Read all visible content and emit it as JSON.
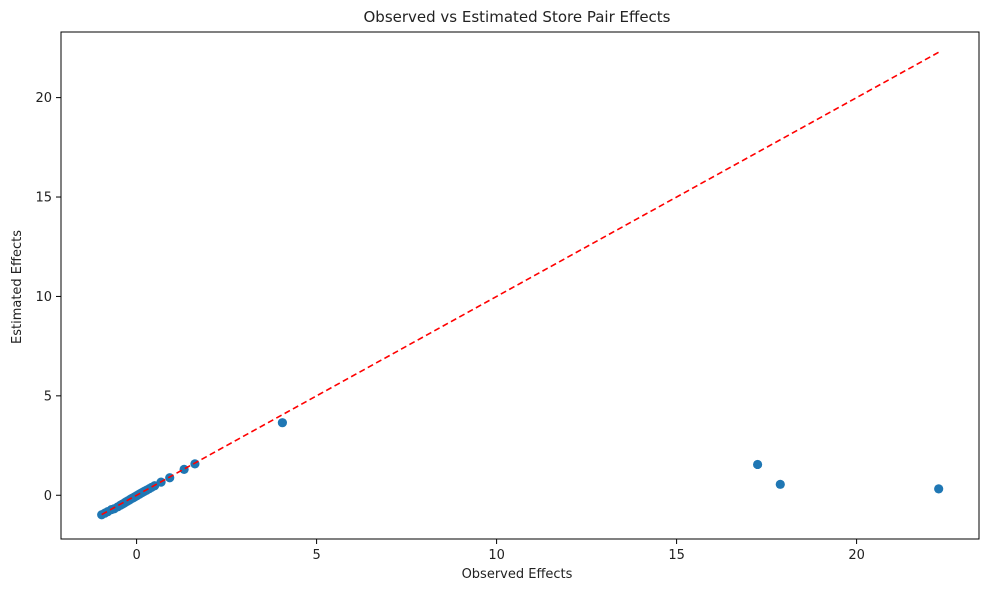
{
  "chart_data": {
    "type": "scatter",
    "title": "Observed vs Estimated Store Pair Effects",
    "xlabel": "Observed Effects",
    "ylabel": "Estimated Effects",
    "xlim": [
      -2.1,
      23.4
    ],
    "ylim": [
      -2.2,
      23.3
    ],
    "xticks": [
      0,
      5,
      10,
      15,
      20
    ],
    "yticks": [
      0,
      5,
      10,
      15,
      20
    ],
    "grid": false,
    "colors": {
      "points": "#1f77b4",
      "reference_line": "#ff0000",
      "axes": "#000000"
    },
    "series": [
      {
        "points": [
          {
            "x": -0.97,
            "y": -0.98
          },
          {
            "x": -0.88,
            "y": -0.9
          },
          {
            "x": -0.8,
            "y": -0.82
          },
          {
            "x": -0.7,
            "y": -0.72
          },
          {
            "x": -0.62,
            "y": -0.68
          },
          {
            "x": -0.52,
            "y": -0.58
          },
          {
            "x": -0.45,
            "y": -0.5
          },
          {
            "x": -0.4,
            "y": -0.45
          },
          {
            "x": -0.35,
            "y": -0.4
          },
          {
            "x": -0.3,
            "y": -0.34
          },
          {
            "x": -0.25,
            "y": -0.29
          },
          {
            "x": -0.2,
            "y": -0.24
          },
          {
            "x": -0.16,
            "y": -0.19
          },
          {
            "x": -0.12,
            "y": -0.15
          },
          {
            "x": -0.08,
            "y": -0.11
          },
          {
            "x": -0.04,
            "y": -0.07
          },
          {
            "x": 0.0,
            "y": -0.03
          },
          {
            "x": 0.04,
            "y": 0.02
          },
          {
            "x": 0.08,
            "y": 0.06
          },
          {
            "x": 0.12,
            "y": 0.1
          },
          {
            "x": 0.17,
            "y": 0.15
          },
          {
            "x": 0.22,
            "y": 0.2
          },
          {
            "x": 0.28,
            "y": 0.26
          },
          {
            "x": 0.35,
            "y": 0.33
          },
          {
            "x": 0.42,
            "y": 0.4
          },
          {
            "x": 0.5,
            "y": 0.48
          },
          {
            "x": 0.68,
            "y": 0.66
          },
          {
            "x": 0.92,
            "y": 0.88
          },
          {
            "x": 1.32,
            "y": 1.3
          },
          {
            "x": 1.62,
            "y": 1.58
          },
          {
            "x": 4.05,
            "y": 3.65
          },
          {
            "x": 17.25,
            "y": 1.55
          },
          {
            "x": 17.88,
            "y": 0.55
          },
          {
            "x": 22.28,
            "y": 0.32
          }
        ]
      }
    ],
    "reference_line": {
      "style": "dashed",
      "from": [
        -0.97,
        -0.97
      ],
      "to": [
        22.28,
        22.28
      ]
    }
  }
}
